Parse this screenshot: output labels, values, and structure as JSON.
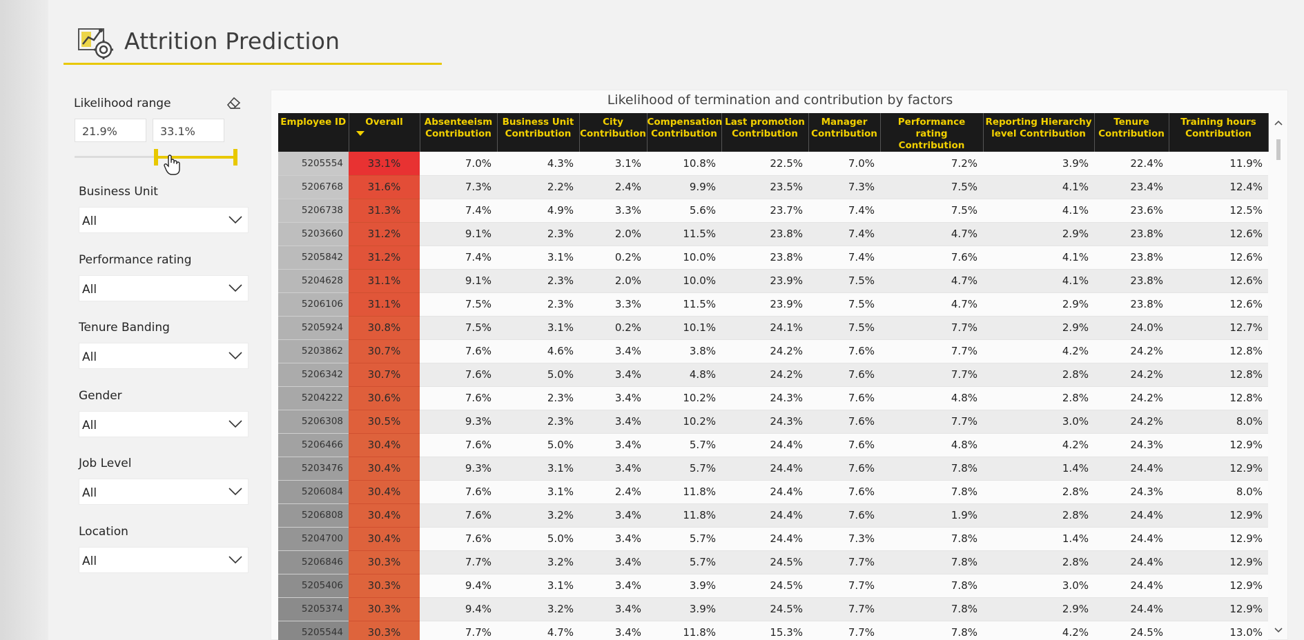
{
  "header": {
    "title": "Attrition Prediction",
    "icon": "analytics-gear-icon"
  },
  "filters": {
    "likelihood": {
      "label": "Likelihood range",
      "min_value": "21.9%",
      "max_value": "33.1%",
      "handle_low_fraction": 0.5,
      "handle_high_fraction": 1.0
    },
    "slicers": [
      {
        "label": "Business Unit",
        "value": "All"
      },
      {
        "label": "Performance rating",
        "value": "All"
      },
      {
        "label": "Tenure Banding",
        "value": "All"
      },
      {
        "label": "Gender",
        "value": "All"
      },
      {
        "label": "Job Level",
        "value": "All"
      },
      {
        "label": "Location",
        "value": "All"
      }
    ]
  },
  "table": {
    "title": "Likelihood of termination and contribution by factors",
    "header_color": "#1a1a1a",
    "header_text_color": "#f2d000",
    "columns": [
      [
        "Employee ID"
      ],
      [
        "Overall"
      ],
      [
        "Absenteeism",
        "Contribution"
      ],
      [
        "Business Unit",
        "Contribution"
      ],
      [
        "City",
        "Contribution"
      ],
      [
        "Compensation",
        "Contribution"
      ],
      [
        "Last promotion",
        "Contribution"
      ],
      [
        "Manager",
        "Contribution"
      ],
      [
        "Performance rating",
        "Contribution"
      ],
      [
        "Reporting Hierarchy",
        "level Contribution"
      ],
      [
        "Tenure",
        "Contribution"
      ],
      [
        "Training hours",
        "Contribution"
      ]
    ],
    "rows": [
      [
        "5205554",
        "33.1%",
        "7.0%",
        "4.3%",
        "3.1%",
        "10.8%",
        "22.5%",
        "7.0%",
        "7.2%",
        "3.9%",
        "22.4%",
        "11.9%"
      ],
      [
        "5206768",
        "31.6%",
        "7.3%",
        "2.2%",
        "2.4%",
        "9.9%",
        "23.5%",
        "7.3%",
        "7.5%",
        "4.1%",
        "23.4%",
        "12.4%"
      ],
      [
        "5206738",
        "31.3%",
        "7.4%",
        "4.9%",
        "3.3%",
        "5.6%",
        "23.7%",
        "7.4%",
        "7.5%",
        "4.1%",
        "23.6%",
        "12.5%"
      ],
      [
        "5203660",
        "31.2%",
        "9.1%",
        "2.3%",
        "2.0%",
        "11.5%",
        "23.8%",
        "7.4%",
        "4.7%",
        "2.9%",
        "23.8%",
        "12.6%"
      ],
      [
        "5205842",
        "31.2%",
        "7.4%",
        "3.1%",
        "0.2%",
        "10.0%",
        "23.8%",
        "7.4%",
        "7.6%",
        "4.1%",
        "23.8%",
        "12.6%"
      ],
      [
        "5204628",
        "31.1%",
        "9.1%",
        "2.3%",
        "2.0%",
        "10.0%",
        "23.9%",
        "7.5%",
        "4.7%",
        "4.1%",
        "23.8%",
        "12.6%"
      ],
      [
        "5206106",
        "31.1%",
        "7.5%",
        "2.3%",
        "3.3%",
        "11.5%",
        "23.9%",
        "7.5%",
        "4.7%",
        "2.9%",
        "23.8%",
        "12.6%"
      ],
      [
        "5205924",
        "30.8%",
        "7.5%",
        "3.1%",
        "0.2%",
        "10.1%",
        "24.1%",
        "7.5%",
        "7.7%",
        "2.9%",
        "24.0%",
        "12.7%"
      ],
      [
        "5203862",
        "30.7%",
        "7.6%",
        "4.6%",
        "3.4%",
        "3.8%",
        "24.2%",
        "7.6%",
        "7.7%",
        "4.2%",
        "24.2%",
        "12.8%"
      ],
      [
        "5206342",
        "30.7%",
        "7.6%",
        "5.0%",
        "3.4%",
        "4.8%",
        "24.2%",
        "7.6%",
        "7.7%",
        "2.8%",
        "24.2%",
        "12.8%"
      ],
      [
        "5204222",
        "30.6%",
        "7.6%",
        "2.3%",
        "3.4%",
        "10.2%",
        "24.3%",
        "7.6%",
        "4.8%",
        "2.8%",
        "24.2%",
        "12.8%"
      ],
      [
        "5206308",
        "30.5%",
        "9.3%",
        "2.3%",
        "3.4%",
        "10.2%",
        "24.3%",
        "7.6%",
        "7.7%",
        "3.0%",
        "24.2%",
        "8.0%"
      ],
      [
        "5206466",
        "30.4%",
        "7.6%",
        "5.0%",
        "3.4%",
        "5.7%",
        "24.4%",
        "7.6%",
        "4.8%",
        "4.2%",
        "24.3%",
        "12.9%"
      ],
      [
        "5203476",
        "30.4%",
        "9.3%",
        "3.1%",
        "3.4%",
        "5.7%",
        "24.4%",
        "7.6%",
        "7.8%",
        "1.4%",
        "24.4%",
        "12.9%"
      ],
      [
        "5206084",
        "30.4%",
        "7.6%",
        "3.1%",
        "2.4%",
        "11.8%",
        "24.4%",
        "7.6%",
        "7.8%",
        "2.8%",
        "24.3%",
        "8.0%"
      ],
      [
        "5206808",
        "30.4%",
        "7.6%",
        "3.2%",
        "3.4%",
        "11.8%",
        "24.4%",
        "7.6%",
        "1.9%",
        "2.8%",
        "24.4%",
        "12.9%"
      ],
      [
        "5204700",
        "30.4%",
        "7.6%",
        "5.0%",
        "3.4%",
        "5.7%",
        "24.4%",
        "7.3%",
        "7.8%",
        "1.4%",
        "24.4%",
        "12.9%"
      ],
      [
        "5206846",
        "30.3%",
        "7.7%",
        "3.2%",
        "3.4%",
        "5.7%",
        "24.5%",
        "7.7%",
        "7.8%",
        "2.8%",
        "24.4%",
        "12.9%"
      ],
      [
        "5205406",
        "30.3%",
        "9.4%",
        "3.1%",
        "3.4%",
        "3.9%",
        "24.5%",
        "7.7%",
        "7.8%",
        "3.0%",
        "24.4%",
        "12.9%"
      ],
      [
        "5205374",
        "30.3%",
        "9.4%",
        "3.2%",
        "3.4%",
        "3.9%",
        "24.5%",
        "7.7%",
        "7.8%",
        "2.9%",
        "24.4%",
        "12.9%"
      ],
      [
        "5205544",
        "30.3%",
        "7.7%",
        "4.7%",
        "3.4%",
        "11.8%",
        "15.3%",
        "7.7%",
        "7.8%",
        "4.2%",
        "24.5%",
        "13.0%"
      ]
    ]
  }
}
